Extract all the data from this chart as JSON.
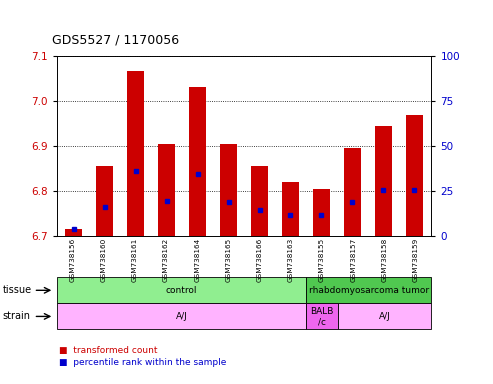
{
  "title": "GDS5527 / 1170056",
  "samples": [
    "GSM738156",
    "GSM738160",
    "GSM738161",
    "GSM738162",
    "GSM738164",
    "GSM738165",
    "GSM738166",
    "GSM738163",
    "GSM738155",
    "GSM738157",
    "GSM738158",
    "GSM738159"
  ],
  "red_top": [
    6.715,
    6.855,
    7.065,
    6.905,
    7.03,
    6.905,
    6.855,
    6.82,
    6.805,
    6.895,
    6.945,
    6.968
  ],
  "red_bottom": [
    6.7,
    6.7,
    6.7,
    6.7,
    6.7,
    6.7,
    6.7,
    6.7,
    6.7,
    6.7,
    6.7,
    6.7
  ],
  "blue_pos": [
    6.716,
    6.765,
    6.845,
    6.778,
    6.838,
    6.775,
    6.758,
    6.748,
    6.748,
    6.775,
    6.802,
    6.802
  ],
  "ylim_left": [
    6.7,
    7.1
  ],
  "ylim_right": [
    0,
    100
  ],
  "yticks_left": [
    6.7,
    6.8,
    6.9,
    7.0,
    7.1
  ],
  "yticks_right": [
    0,
    25,
    50,
    75,
    100
  ],
  "tissue_groups": [
    {
      "label": "control",
      "start": 0,
      "end": 8,
      "color": "#90EE90"
    },
    {
      "label": "rhabdomyosarcoma tumor",
      "start": 8,
      "end": 12,
      "color": "#50C850"
    }
  ],
  "strain_groups": [
    {
      "label": "A/J",
      "start": 0,
      "end": 8,
      "color": "#FFB3FF"
    },
    {
      "label": "BALB\n/c",
      "start": 8,
      "end": 9,
      "color": "#EE66EE"
    },
    {
      "label": "A/J",
      "start": 9,
      "end": 12,
      "color": "#FFB3FF"
    }
  ],
  "bar_color": "#CC0000",
  "dot_color": "#0000CC",
  "bg_color": "#FFFFFF",
  "tick_label_color_left": "#CC0000",
  "tick_label_color_right": "#0000CC",
  "n_samples": 12
}
